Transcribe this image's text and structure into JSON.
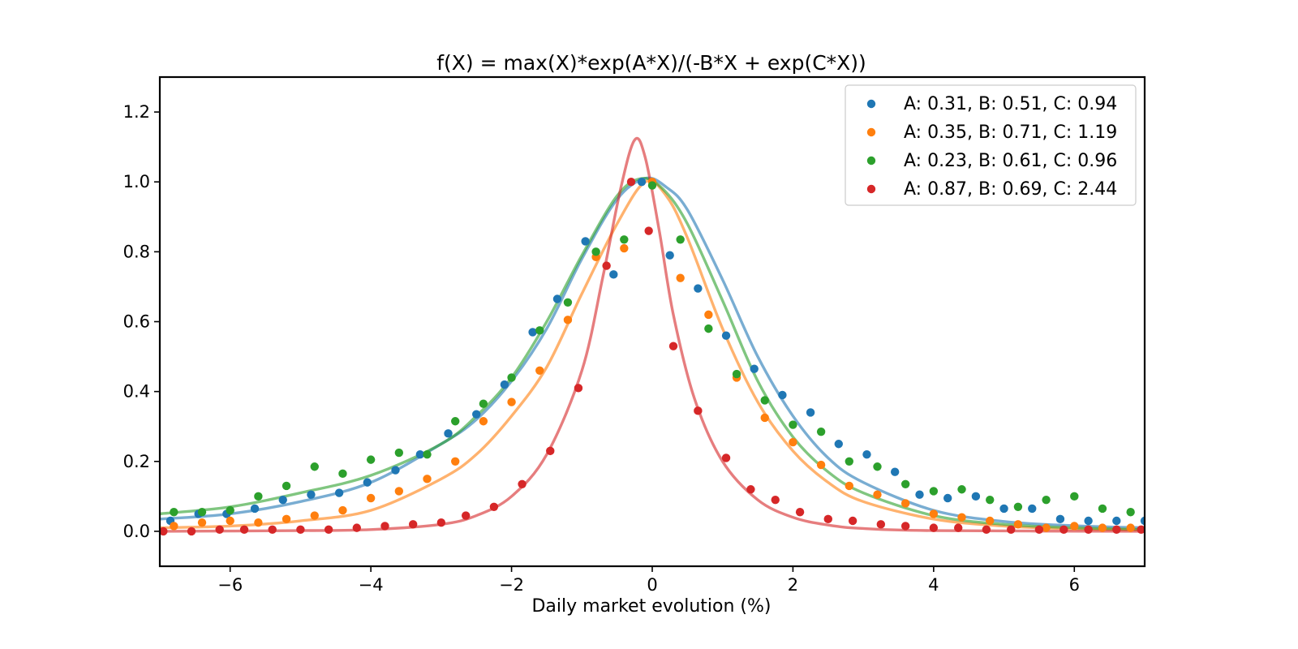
{
  "chart_data": {
    "type": "scatter",
    "title": "f(X) = max(X)*exp(A*X)/(-B*X + exp(C*X))",
    "xlabel": "Daily market evolution (%)",
    "ylabel": "",
    "xlim": [
      -7,
      7
    ],
    "ylim": [
      -0.1,
      1.3
    ],
    "x_ticks": [
      -6,
      -4,
      -2,
      0,
      2,
      4,
      6
    ],
    "x_tick_labels": [
      "−6",
      "−4",
      "−2",
      "0",
      "2",
      "4",
      "6"
    ],
    "y_ticks": [
      0.0,
      0.2,
      0.4,
      0.6,
      0.8,
      1.0,
      1.2
    ],
    "y_tick_labels": [
      "0.0",
      "0.2",
      "0.4",
      "0.6",
      "0.8",
      "1.0",
      "1.2"
    ],
    "grid": false,
    "legend_position": "top-right",
    "series": [
      {
        "name": "A: 0.31, B: 0.51, C: 0.94",
        "color": "#1f77b4",
        "params": {
          "A": 0.31,
          "B": 0.51,
          "C": 0.94
        },
        "points": [
          [
            -6.85,
            0.03
          ],
          [
            -6.45,
            0.05
          ],
          [
            -6.05,
            0.05
          ],
          [
            -5.65,
            0.065
          ],
          [
            -5.25,
            0.09
          ],
          [
            -4.85,
            0.105
          ],
          [
            -4.45,
            0.11
          ],
          [
            -4.05,
            0.14
          ],
          [
            -3.65,
            0.175
          ],
          [
            -3.3,
            0.22
          ],
          [
            -2.9,
            0.28
          ],
          [
            -2.5,
            0.335
          ],
          [
            -2.1,
            0.42
          ],
          [
            -1.7,
            0.57
          ],
          [
            -1.35,
            0.665
          ],
          [
            -0.95,
            0.83
          ],
          [
            -0.55,
            0.735
          ],
          [
            -0.15,
            1.0
          ],
          [
            0.25,
            0.79
          ],
          [
            0.65,
            0.695
          ],
          [
            1.05,
            0.56
          ],
          [
            1.45,
            0.465
          ],
          [
            1.85,
            0.39
          ],
          [
            2.25,
            0.34
          ],
          [
            2.65,
            0.25
          ],
          [
            3.05,
            0.22
          ],
          [
            3.45,
            0.17
          ],
          [
            3.8,
            0.105
          ],
          [
            4.2,
            0.095
          ],
          [
            4.6,
            0.1
          ],
          [
            5.0,
            0.065
          ],
          [
            5.4,
            0.065
          ],
          [
            5.8,
            0.035
          ],
          [
            6.2,
            0.03
          ],
          [
            6.6,
            0.03
          ],
          [
            7.0,
            0.03
          ]
        ]
      },
      {
        "name": "A: 0.35, B: 0.71, C: 1.19",
        "color": "#ff7f0e",
        "params": {
          "A": 0.35,
          "B": 0.71,
          "C": 1.19
        },
        "points": [
          [
            -6.8,
            0.015
          ],
          [
            -6.4,
            0.025
          ],
          [
            -6.0,
            0.03
          ],
          [
            -5.6,
            0.025
          ],
          [
            -5.2,
            0.035
          ],
          [
            -4.8,
            0.045
          ],
          [
            -4.4,
            0.06
          ],
          [
            -4.0,
            0.095
          ],
          [
            -3.6,
            0.115
          ],
          [
            -3.2,
            0.15
          ],
          [
            -2.8,
            0.2
          ],
          [
            -2.4,
            0.315
          ],
          [
            -2.0,
            0.37
          ],
          [
            -1.6,
            0.46
          ],
          [
            -1.2,
            0.605
          ],
          [
            -0.8,
            0.785
          ],
          [
            -0.4,
            0.81
          ],
          [
            0.0,
            1.0
          ],
          [
            0.4,
            0.725
          ],
          [
            0.8,
            0.62
          ],
          [
            1.2,
            0.44
          ],
          [
            1.6,
            0.325
          ],
          [
            2.0,
            0.255
          ],
          [
            2.4,
            0.19
          ],
          [
            2.8,
            0.13
          ],
          [
            3.2,
            0.105
          ],
          [
            3.6,
            0.08
          ],
          [
            4.0,
            0.05
          ],
          [
            4.4,
            0.04
          ],
          [
            4.8,
            0.03
          ],
          [
            5.2,
            0.02
          ],
          [
            5.6,
            0.01
          ],
          [
            6.0,
            0.015
          ],
          [
            6.4,
            0.01
          ],
          [
            6.8,
            0.01
          ]
        ]
      },
      {
        "name": "A: 0.23, B: 0.61, C: 0.96",
        "color": "#2ca02c",
        "params": {
          "A": 0.23,
          "B": 0.61,
          "C": 0.96
        },
        "points": [
          [
            -6.8,
            0.055
          ],
          [
            -6.4,
            0.055
          ],
          [
            -6.0,
            0.06
          ],
          [
            -5.6,
            0.1
          ],
          [
            -5.2,
            0.13
          ],
          [
            -4.8,
            0.185
          ],
          [
            -4.4,
            0.165
          ],
          [
            -4.0,
            0.205
          ],
          [
            -3.6,
            0.225
          ],
          [
            -3.2,
            0.22
          ],
          [
            -2.8,
            0.315
          ],
          [
            -2.4,
            0.365
          ],
          [
            -2.0,
            0.44
          ],
          [
            -1.6,
            0.575
          ],
          [
            -1.2,
            0.655
          ],
          [
            -0.8,
            0.8
          ],
          [
            -0.4,
            0.835
          ],
          [
            0.0,
            0.99
          ],
          [
            0.4,
            0.835
          ],
          [
            0.8,
            0.58
          ],
          [
            1.2,
            0.45
          ],
          [
            1.6,
            0.375
          ],
          [
            2.0,
            0.305
          ],
          [
            2.4,
            0.285
          ],
          [
            2.8,
            0.2
          ],
          [
            3.2,
            0.185
          ],
          [
            3.6,
            0.135
          ],
          [
            4.0,
            0.115
          ],
          [
            4.4,
            0.12
          ],
          [
            4.8,
            0.09
          ],
          [
            5.2,
            0.07
          ],
          [
            5.6,
            0.09
          ],
          [
            6.0,
            0.1
          ],
          [
            6.4,
            0.065
          ],
          [
            6.8,
            0.055
          ]
        ]
      },
      {
        "name": "A: 0.87, B: 0.69, C: 2.44",
        "color": "#d62728",
        "params": {
          "A": 0.87,
          "B": 0.69,
          "C": 2.44
        },
        "points": [
          [
            -6.95,
            0.0
          ],
          [
            -6.55,
            0.0
          ],
          [
            -6.15,
            0.005
          ],
          [
            -5.8,
            0.005
          ],
          [
            -5.4,
            0.005
          ],
          [
            -5.0,
            0.005
          ],
          [
            -4.6,
            0.005
          ],
          [
            -4.2,
            0.01
          ],
          [
            -3.8,
            0.015
          ],
          [
            -3.4,
            0.02
          ],
          [
            -3.0,
            0.025
          ],
          [
            -2.65,
            0.045
          ],
          [
            -2.25,
            0.07
          ],
          [
            -1.85,
            0.135
          ],
          [
            -1.45,
            0.23
          ],
          [
            -1.05,
            0.41
          ],
          [
            -0.65,
            0.76
          ],
          [
            -0.3,
            1.0
          ],
          [
            -0.05,
            0.86
          ],
          [
            0.3,
            0.53
          ],
          [
            0.65,
            0.345
          ],
          [
            1.05,
            0.21
          ],
          [
            1.4,
            0.12
          ],
          [
            1.75,
            0.09
          ],
          [
            2.1,
            0.055
          ],
          [
            2.5,
            0.035
          ],
          [
            2.85,
            0.03
          ],
          [
            3.25,
            0.02
          ],
          [
            3.6,
            0.015
          ],
          [
            4.0,
            0.01
          ],
          [
            4.35,
            0.01
          ],
          [
            4.75,
            0.005
          ],
          [
            5.1,
            0.005
          ],
          [
            5.5,
            0.005
          ],
          [
            5.85,
            0.005
          ],
          [
            6.2,
            0.005
          ],
          [
            6.6,
            0.005
          ],
          [
            6.95,
            0.005
          ]
        ]
      }
    ],
    "fit_curves": [
      {
        "color": "#1f77b4",
        "points": [
          [
            -7.0,
            0.035
          ],
          [
            -6.0,
            0.05
          ],
          [
            -5.0,
            0.085
          ],
          [
            -4.0,
            0.14
          ],
          [
            -3.0,
            0.25
          ],
          [
            -2.5,
            0.32
          ],
          [
            -2.0,
            0.43
          ],
          [
            -1.5,
            0.58
          ],
          [
            -1.0,
            0.78
          ],
          [
            -0.5,
            0.95
          ],
          [
            -0.1,
            1.01
          ],
          [
            0.2,
            0.985
          ],
          [
            0.5,
            0.92
          ],
          [
            1.0,
            0.72
          ],
          [
            1.5,
            0.5
          ],
          [
            2.0,
            0.33
          ],
          [
            2.5,
            0.21
          ],
          [
            3.0,
            0.14
          ],
          [
            4.0,
            0.06
          ],
          [
            5.0,
            0.028
          ],
          [
            6.0,
            0.016
          ],
          [
            7.0,
            0.01
          ]
        ]
      },
      {
        "color": "#ff7f0e",
        "points": [
          [
            -7.0,
            0.01
          ],
          [
            -6.0,
            0.015
          ],
          [
            -5.0,
            0.03
          ],
          [
            -4.0,
            0.06
          ],
          [
            -3.0,
            0.15
          ],
          [
            -2.5,
            0.22
          ],
          [
            -2.0,
            0.33
          ],
          [
            -1.5,
            0.47
          ],
          [
            -1.0,
            0.68
          ],
          [
            -0.5,
            0.88
          ],
          [
            -0.1,
            1.0
          ],
          [
            0.2,
            0.96
          ],
          [
            0.5,
            0.84
          ],
          [
            1.0,
            0.58
          ],
          [
            1.5,
            0.37
          ],
          [
            2.0,
            0.23
          ],
          [
            2.5,
            0.14
          ],
          [
            3.0,
            0.085
          ],
          [
            4.0,
            0.035
          ],
          [
            5.0,
            0.015
          ],
          [
            6.0,
            0.007
          ],
          [
            7.0,
            0.004
          ]
        ]
      },
      {
        "color": "#2ca02c",
        "points": [
          [
            -7.0,
            0.05
          ],
          [
            -6.0,
            0.07
          ],
          [
            -5.0,
            0.11
          ],
          [
            -4.0,
            0.16
          ],
          [
            -3.0,
            0.25
          ],
          [
            -2.5,
            0.33
          ],
          [
            -2.0,
            0.44
          ],
          [
            -1.5,
            0.6
          ],
          [
            -1.0,
            0.79
          ],
          [
            -0.5,
            0.96
          ],
          [
            -0.15,
            1.01
          ],
          [
            0.15,
            0.98
          ],
          [
            0.5,
            0.88
          ],
          [
            1.0,
            0.66
          ],
          [
            1.5,
            0.43
          ],
          [
            2.0,
            0.27
          ],
          [
            2.5,
            0.17
          ],
          [
            3.0,
            0.11
          ],
          [
            4.0,
            0.045
          ],
          [
            5.0,
            0.02
          ],
          [
            6.0,
            0.01
          ],
          [
            7.0,
            0.005
          ]
        ]
      },
      {
        "color": "#d62728",
        "points": [
          [
            -7.0,
            0.0
          ],
          [
            -5.0,
            0.002
          ],
          [
            -4.0,
            0.005
          ],
          [
            -3.0,
            0.02
          ],
          [
            -2.5,
            0.045
          ],
          [
            -2.0,
            0.1
          ],
          [
            -1.5,
            0.22
          ],
          [
            -1.0,
            0.46
          ],
          [
            -0.7,
            0.73
          ],
          [
            -0.45,
            0.98
          ],
          [
            -0.25,
            1.12
          ],
          [
            -0.1,
            1.07
          ],
          [
            0.1,
            0.86
          ],
          [
            0.3,
            0.62
          ],
          [
            0.6,
            0.38
          ],
          [
            1.0,
            0.2
          ],
          [
            1.5,
            0.09
          ],
          [
            2.0,
            0.04
          ],
          [
            2.5,
            0.018
          ],
          [
            3.0,
            0.008
          ],
          [
            4.0,
            0.002
          ],
          [
            7.0,
            0.0
          ]
        ]
      }
    ]
  }
}
